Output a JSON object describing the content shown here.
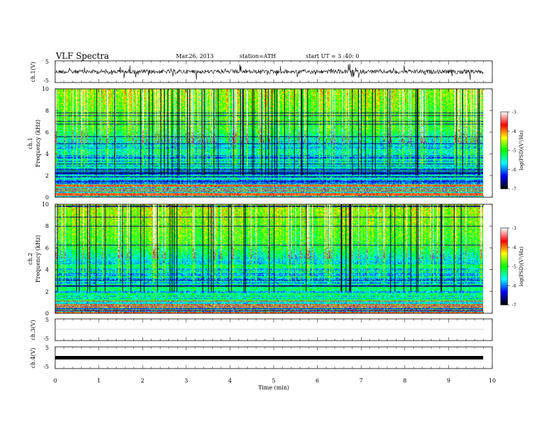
{
  "header": {
    "title": "VLF  Spectra",
    "date": "Mar.26, 2013",
    "station": "station=ATH",
    "start": "start  UT =  3 :40: 0"
  },
  "chart_data": [
    {
      "type": "line",
      "panel": "ch1-waveform",
      "ylabel": "ch.1(V)",
      "ylim": [
        -5,
        5
      ],
      "yticks": [
        "5",
        "-5"
      ],
      "xlim": [
        0,
        10
      ],
      "description_color": "#000000"
    },
    {
      "type": "heatmap",
      "panel": "ch1-spectrogram",
      "ylabel": "ch.1\nFrequency (kHz)",
      "ylabel_lines": [
        "ch.1",
        "Frequency  (kHz)"
      ],
      "ylim": [
        0,
        10
      ],
      "yticks": [
        "0",
        "2",
        "4",
        "6",
        "8",
        "10"
      ],
      "xlim": [
        0,
        10
      ],
      "data_extent_min": 9.8,
      "colorbar": {
        "label": "log(PSD)(V²/Hz)",
        "range": [
          -7,
          -3
        ],
        "ticks": [
          "-3",
          "-4",
          "-5",
          "-6",
          "-7"
        ]
      }
    },
    {
      "type": "heatmap",
      "panel": "ch2-spectrogram",
      "ylabel_lines": [
        "ch.2",
        "Frequency  (kHz)"
      ],
      "ylim": [
        0,
        10
      ],
      "yticks": [
        "0",
        "2",
        "4",
        "6",
        "8",
        "10"
      ],
      "xlim": [
        0,
        10
      ],
      "data_extent_min": 9.8,
      "colorbar": {
        "label": "log(PSD)(V²/Hz)",
        "range": [
          -7,
          -3
        ],
        "ticks": [
          "-3",
          "-4",
          "-5",
          "-6",
          "-7"
        ]
      }
    },
    {
      "type": "line",
      "panel": "ch3-waveform",
      "ylabel": "ch.3(V)",
      "ylim": [
        -5,
        5
      ],
      "yticks": [
        "5",
        "-5"
      ],
      "xlim": [
        0,
        10
      ],
      "level": 0
    },
    {
      "type": "line",
      "panel": "ch4-waveform",
      "ylabel": "ch.4(V)",
      "ylim": [
        -5,
        5
      ],
      "yticks": [
        "5",
        "-5"
      ],
      "xlim": [
        0,
        10
      ],
      "level": 0
    }
  ],
  "xaxis": {
    "label": "Time  (min)",
    "ticks": [
      "0",
      "1",
      "2",
      "3",
      "4",
      "5",
      "6",
      "7",
      "8",
      "9",
      "10"
    ],
    "range": [
      0,
      10
    ]
  },
  "colormap": [
    "#ffffff",
    "#ff0000",
    "#ffff00",
    "#00ff00",
    "#00ffff",
    "#0000ff",
    "#000000"
  ]
}
